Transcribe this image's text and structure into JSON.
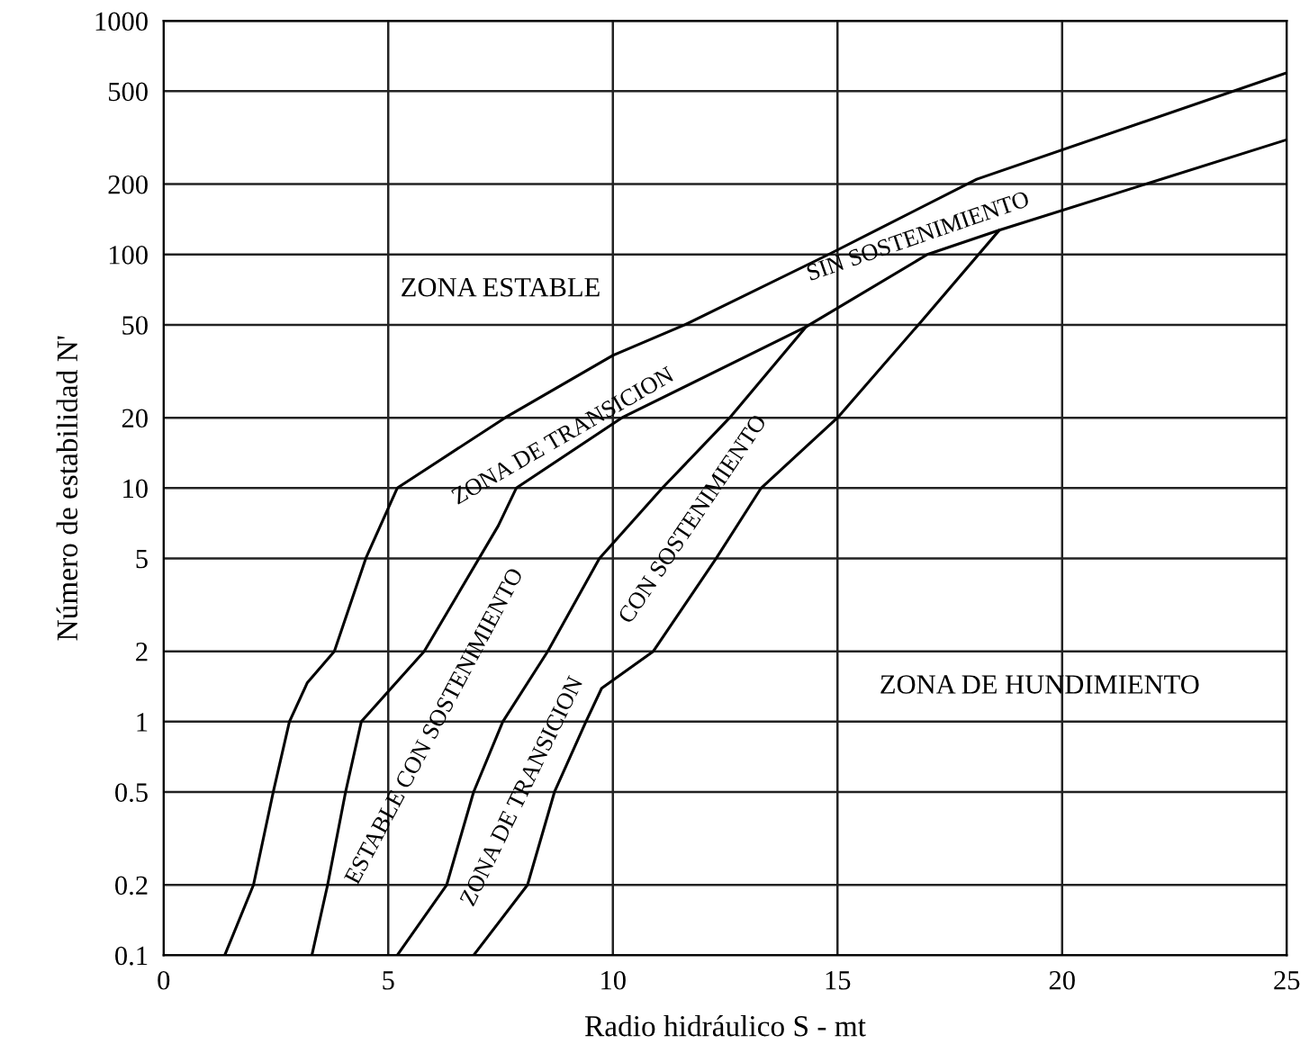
{
  "chart_data": {
    "type": "line",
    "xlabel": "Radio hidráulico S - mt",
    "ylabel": "Número de estabilidad N'",
    "log": "y",
    "xlim": [
      0,
      25
    ],
    "ylim": [
      0.1,
      1000
    ],
    "xticks": [
      0,
      5,
      10,
      15,
      20,
      25
    ],
    "yticks": [
      0.1,
      0.2,
      0.5,
      1,
      2,
      5,
      10,
      20,
      50,
      100,
      200,
      500,
      1000
    ],
    "grid": true,
    "line_style": "solid",
    "series": [
      {
        "color": "#000000",
        "x": [
          1.36,
          2.0,
          2.44,
          2.8,
          3.2,
          3.8,
          4.5,
          5.2,
          7.6,
          10.0,
          11.6,
          14.8,
          18.1,
          25
        ],
        "values": [
          0.1,
          0.2,
          0.5,
          1,
          1.47,
          2,
          5,
          10,
          20,
          37,
          50,
          100,
          210,
          600
        ]
      },
      {
        "color": "#000000",
        "x": [
          3.3,
          3.65,
          4.05,
          4.4,
          4.75,
          5.8,
          7.45,
          7.85,
          10.2,
          14.3,
          17.0,
          18.6,
          25
        ],
        "values": [
          0.1,
          0.2,
          0.5,
          1,
          1.19,
          2,
          6.9,
          10,
          20,
          49,
          100,
          127,
          310
        ]
      },
      {
        "color": "#000000",
        "x": [
          5.2,
          6.3,
          6.9,
          7.55,
          8.55,
          9.7,
          11.1,
          12.6,
          14.3
        ],
        "values": [
          0.1,
          0.2,
          0.5,
          1,
          2,
          5,
          10,
          20,
          49
        ]
      },
      {
        "color": "#000000",
        "x": [
          6.9,
          8.1,
          8.7,
          9.4,
          9.75,
          10.9,
          12.3,
          13.3,
          15.0,
          16.8,
          18.6
        ],
        "values": [
          0.1,
          0.2,
          0.5,
          1,
          1.39,
          2,
          5,
          10,
          20,
          50,
          127
        ]
      }
    ],
    "annotations": [
      "ZONA ESTABLE",
      "ZONA DE TRANSICION",
      "SIN SOSTENIMIENTO",
      "ESTABLE CON SOSTENIMIENTO",
      "ZONA DE TRANSICION",
      "CON SOSTENIMIENTO",
      "ZONA DE HUNDIMIENTO"
    ]
  }
}
